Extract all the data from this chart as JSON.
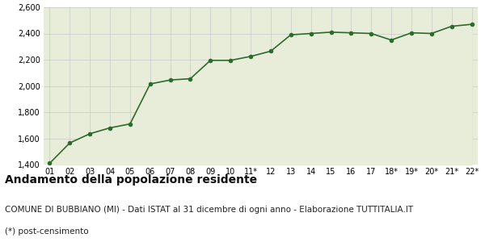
{
  "x_labels": [
    "01",
    "02",
    "03",
    "04",
    "05",
    "06",
    "07",
    "08",
    "09",
    "10",
    "11*",
    "12",
    "13",
    "14",
    "15",
    "16",
    "17",
    "18*",
    "19*",
    "20*",
    "21*",
    "22*"
  ],
  "y_values": [
    1410,
    1565,
    1635,
    1680,
    1710,
    2015,
    2045,
    2055,
    2195,
    2195,
    2225,
    2265,
    2390,
    2400,
    2410,
    2405,
    2400,
    2350,
    2405,
    2400,
    2455,
    2470
  ],
  "line_color": "#2d6b2d",
  "fill_color": "#e8edda",
  "marker_color": "#2d6b2d",
  "bg_color": "#ffffff",
  "grid_color": "#c8c8c8",
  "ylim": [
    1400,
    2600
  ],
  "yticks": [
    1400,
    1600,
    1800,
    2000,
    2200,
    2400,
    2600
  ],
  "title": "Andamento della popolazione residente",
  "subtitle": "COMUNE DI BUBBIANO (MI) - Dati ISTAT al 31 dicembre di ogni anno - Elaborazione TUTTITALIA.IT",
  "footnote": "(*) post-censimento",
  "title_fontsize": 10,
  "subtitle_fontsize": 7.5,
  "footnote_fontsize": 7.5
}
